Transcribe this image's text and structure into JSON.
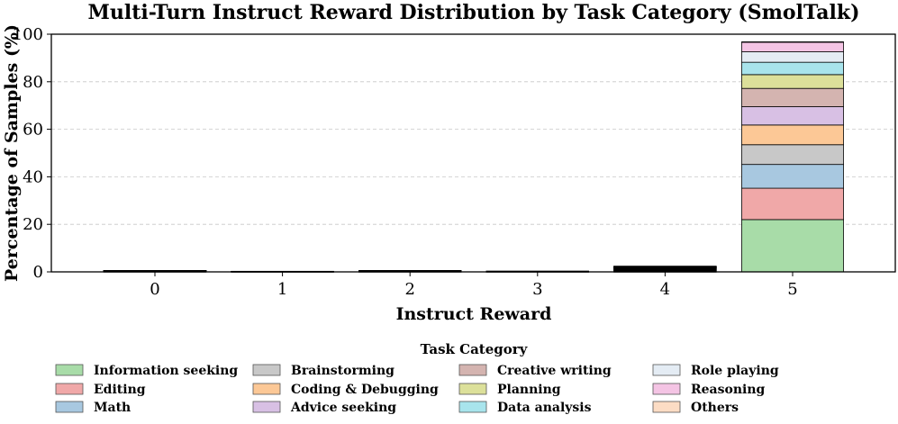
{
  "chart_data": {
    "type": "bar",
    "stacked": true,
    "title": "Multi-Turn Instruct Reward Distribution by Task Category (SmolTalk)",
    "xlabel": "Instruct Reward",
    "ylabel": "Percentage of Samples (%)",
    "categories": [
      "0",
      "1",
      "2",
      "3",
      "4",
      "5"
    ],
    "yticks": [
      "0",
      "20",
      "40",
      "60",
      "80",
      "100"
    ],
    "ylim": [
      0,
      100
    ],
    "grid": true,
    "legend_title": "Task Category",
    "legend_position": "bottom",
    "series": [
      {
        "name": "Information seeking",
        "color": "#a8dca8",
        "values": [
          0.2,
          0.05,
          0.15,
          0.05,
          0.5,
          22.0
        ]
      },
      {
        "name": "Editing",
        "color": "#f0a8a8",
        "values": [
          0.1,
          0.02,
          0.1,
          0.03,
          0.3,
          13.2
        ]
      },
      {
        "name": "Math",
        "color": "#a8c8e0",
        "values": [
          0.05,
          0.02,
          0.05,
          0.02,
          0.3,
          10.0
        ]
      },
      {
        "name": "Brainstorming",
        "color": "#c8c8c8",
        "values": [
          0.02,
          0.01,
          0.03,
          0.01,
          0.2,
          8.3
        ]
      },
      {
        "name": "Coding & Debugging",
        "color": "#fcc896",
        "values": [
          0.03,
          0.01,
          0.05,
          0.02,
          0.2,
          8.3
        ]
      },
      {
        "name": "Advice seeking",
        "color": "#d8c0e4",
        "values": [
          0.02,
          0.01,
          0.02,
          0.01,
          0.2,
          7.7
        ]
      },
      {
        "name": "Creative writing",
        "color": "#d4b4b0",
        "values": [
          0.02,
          0.01,
          0.02,
          0.01,
          0.2,
          7.7
        ]
      },
      {
        "name": "Planning",
        "color": "#dce09a",
        "values": [
          0.01,
          0.0,
          0.02,
          0.01,
          0.1,
          5.8
        ]
      },
      {
        "name": "Data analysis",
        "color": "#a8e4ec",
        "values": [
          0.01,
          0.0,
          0.02,
          0.01,
          0.1,
          5.2
        ]
      },
      {
        "name": "Role playing",
        "color": "#e4ecf4",
        "values": [
          0.01,
          0.0,
          0.01,
          0.0,
          0.1,
          4.4
        ]
      },
      {
        "name": "Reasoning",
        "color": "#f4c4e4",
        "values": [
          0.01,
          0.0,
          0.01,
          0.0,
          0.1,
          4.0
        ]
      },
      {
        "name": "Others",
        "color": "#fcdcc4",
        "values": [
          0.0,
          0.0,
          0.0,
          0.0,
          0.0,
          0.2
        ]
      }
    ]
  }
}
